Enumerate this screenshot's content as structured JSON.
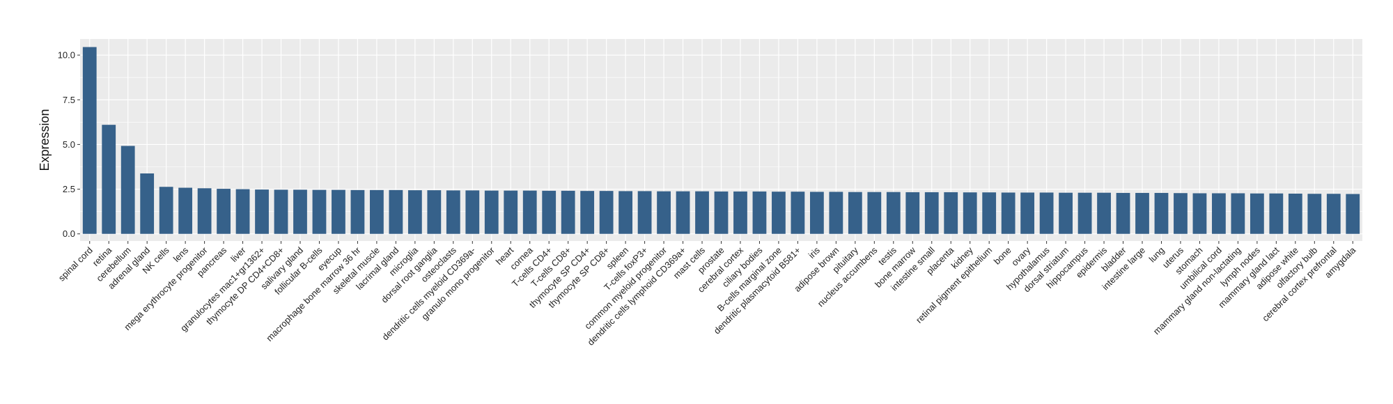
{
  "chart_data": {
    "type": "bar",
    "title": "",
    "xlabel": "",
    "ylabel": "Expression",
    "ylim": [
      -0.4,
      10.9
    ],
    "yticks": [
      0.0,
      2.5,
      5.0,
      7.5,
      10.0
    ],
    "ytick_labels": [
      "0.0",
      "2.5",
      "5.0",
      "7.5",
      "10.0"
    ],
    "grid": true,
    "bar_color": "#36618A",
    "panel_color": "#EBEBEB",
    "grid_color": "#FFFFFF",
    "categories": [
      "spinal cord",
      "retina",
      "cerebellum",
      "adrenal gland",
      "NK cells",
      "lens",
      "mega erythrocyte progenitor",
      "pancreas",
      "liver",
      "granulocytes mac1+gr1362+",
      "thymocyte DP CD4+CD8+",
      "salivary gland",
      "follicular B-cells",
      "eyecup",
      "macrophage bone marrow 36 hr",
      "skeletal muscle",
      "lacrimal gland",
      "microglia",
      "dorsal root ganglia",
      "osteoclasts",
      "dendritic cells myeloid CD369a-",
      "granulo mono progenitor",
      "heart",
      "cornea",
      "T-cells CD4+",
      "T-cells CD8+",
      "thymocyte SP CD4+",
      "thymocyte SP CD8+",
      "spleen",
      "T-cells foxP3+",
      "common myeloid progenitor",
      "dendritic cells lymphoid CD369a+",
      "mast cells",
      "prostate",
      "cerebral cortex",
      "ciliary bodies",
      "B-cells marginal zone",
      "dendritic plasmacytoid B581+",
      "iris",
      "adipose brown",
      "pituitary",
      "nucleus accumbens",
      "testis",
      "bone marrow",
      "intestine small",
      "placenta",
      "kidney",
      "retinal pigment epithelium",
      "bone",
      "ovary",
      "hypothalamus",
      "dorsal striatum",
      "hippocampus",
      "epidermis",
      "bladder",
      "intestine large",
      "lung",
      "uterus",
      "stomach",
      "umbilical cord",
      "mammary gland non-lactating",
      "lymph nodes",
      "mammary gland lact",
      "adipose white",
      "olfactory bulb",
      "cerebral cortex prefrontal",
      "amygdala"
    ],
    "values": [
      10.45,
      6.1,
      4.92,
      3.38,
      2.63,
      2.58,
      2.55,
      2.52,
      2.5,
      2.48,
      2.47,
      2.47,
      2.46,
      2.46,
      2.45,
      2.45,
      2.45,
      2.44,
      2.44,
      2.43,
      2.43,
      2.42,
      2.42,
      2.42,
      2.41,
      2.41,
      2.4,
      2.4,
      2.39,
      2.39,
      2.38,
      2.38,
      2.38,
      2.37,
      2.37,
      2.37,
      2.36,
      2.36,
      2.35,
      2.35,
      2.34,
      2.34,
      2.34,
      2.33,
      2.33,
      2.33,
      2.32,
      2.32,
      2.31,
      2.31,
      2.31,
      2.3,
      2.3,
      2.3,
      2.29,
      2.29,
      2.29,
      2.28,
      2.27,
      2.27,
      2.27,
      2.26,
      2.26,
      2.25,
      2.24,
      2.24,
      2.23
    ]
  }
}
